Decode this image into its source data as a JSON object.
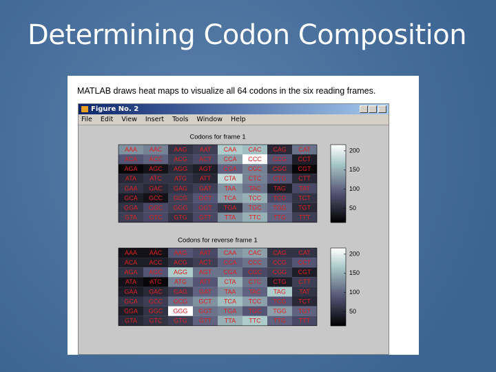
{
  "slide": {
    "title": "Determining Codon Composition",
    "caption": "MATLAB draws heat maps to visualize all 64 codons in the six reading frames."
  },
  "window": {
    "title": "Figure No. 2",
    "menu": [
      "File",
      "Edit",
      "View",
      "Insert",
      "Tools",
      "Window",
      "Help"
    ]
  },
  "chart_data": [
    {
      "type": "heatmap",
      "title": "Codons for frame 1",
      "colormap": "bone",
      "labels": [
        [
          "AAA",
          "AAC",
          "AAG",
          "AAT",
          "CAA",
          "CAC",
          "CAG",
          "CAT"
        ],
        [
          "ACA",
          "ACC",
          "ACG",
          "ACT",
          "CCA",
          "CCC",
          "CCG",
          "CCT"
        ],
        [
          "AGA",
          "AGC",
          "AGG",
          "AGT",
          "CGA",
          "CGC",
          "CGG",
          "CGT"
        ],
        [
          "ATA",
          "ATC",
          "ATG",
          "ATT",
          "CTA",
          "CTC",
          "CTG",
          "CTT"
        ],
        [
          "GAA",
          "GAC",
          "GAG",
          "GAT",
          "TAA",
          "TAC",
          "TAG",
          "TAT"
        ],
        [
          "GCA",
          "GCC",
          "GCG",
          "GCT",
          "TCA",
          "TCC",
          "TCG",
          "TCT"
        ],
        [
          "GGA",
          "GGC",
          "GGG",
          "GGT",
          "TGA",
          "TGC",
          "TGG",
          "TGT"
        ],
        [
          "GTA",
          "GTC",
          "GTG",
          "GTT",
          "TTA",
          "TTC",
          "TTG",
          "TTT"
        ]
      ],
      "values": [
        [
          130,
          120,
          60,
          70,
          170,
          160,
          50,
          110
        ],
        [
          90,
          100,
          70,
          80,
          140,
          216,
          90,
          40
        ],
        [
          20,
          30,
          50,
          40,
          100,
          120,
          60,
          20
        ],
        [
          50,
          60,
          60,
          50,
          180,
          120,
          90,
          50
        ],
        [
          60,
          50,
          60,
          70,
          130,
          110,
          40,
          80
        ],
        [
          40,
          30,
          70,
          90,
          140,
          150,
          80,
          60
        ],
        [
          60,
          80,
          70,
          80,
          60,
          120,
          100,
          50
        ],
        [
          70,
          80,
          60,
          80,
          130,
          150,
          100,
          70
        ]
      ],
      "clim": [
        14,
        216
      ],
      "cticks": [
        50,
        100,
        150,
        200
      ]
    },
    {
      "type": "heatmap",
      "title": "Codons for reverse frame 1",
      "colormap": "bone",
      "labels": [
        [
          "AAA",
          "AAC",
          "AAG",
          "AAT",
          "CAA",
          "CAC",
          "CAG",
          "CAT"
        ],
        [
          "ACA",
          "ACC",
          "ACG",
          "ACT",
          "CCA",
          "CCC",
          "CCG",
          "CCT"
        ],
        [
          "AGA",
          "AGC",
          "AGG",
          "AGT",
          "CGA",
          "CGC",
          "CGG",
          "CGT"
        ],
        [
          "ATA",
          "ATC",
          "ATG",
          "ATT",
          "CTA",
          "CTC",
          "CTG",
          "CTT"
        ],
        [
          "GAA",
          "GAC",
          "GAG",
          "GAT",
          "TAA",
          "TAC",
          "TAG",
          "TAT"
        ],
        [
          "GCA",
          "GCC",
          "GCG",
          "GCT",
          "TCA",
          "TCC",
          "TCG",
          "TCT"
        ],
        [
          "GGA",
          "GGC",
          "GGG",
          "GGT",
          "TGA",
          "TGC",
          "TGG",
          "TGT"
        ],
        [
          "GTA",
          "GTC",
          "GTG",
          "GTT",
          "TTA",
          "TTC",
          "TTG",
          "TTT"
        ]
      ],
      "values": [
        [
          30,
          30,
          90,
          80,
          130,
          140,
          60,
          60
        ],
        [
          40,
          40,
          60,
          70,
          100,
          110,
          70,
          90
        ],
        [
          60,
          90,
          170,
          110,
          110,
          80,
          70,
          40
        ],
        [
          30,
          20,
          120,
          90,
          150,
          110,
          40,
          70
        ],
        [
          40,
          50,
          70,
          100,
          130,
          100,
          170,
          60
        ],
        [
          60,
          70,
          110,
          130,
          160,
          140,
          90,
          50
        ],
        [
          40,
          60,
          216,
          110,
          120,
          90,
          140,
          100
        ],
        [
          50,
          60,
          70,
          100,
          150,
          170,
          100,
          80
        ]
      ],
      "clim": [
        14,
        216
      ],
      "cticks": [
        50,
        100,
        150,
        200
      ]
    }
  ]
}
